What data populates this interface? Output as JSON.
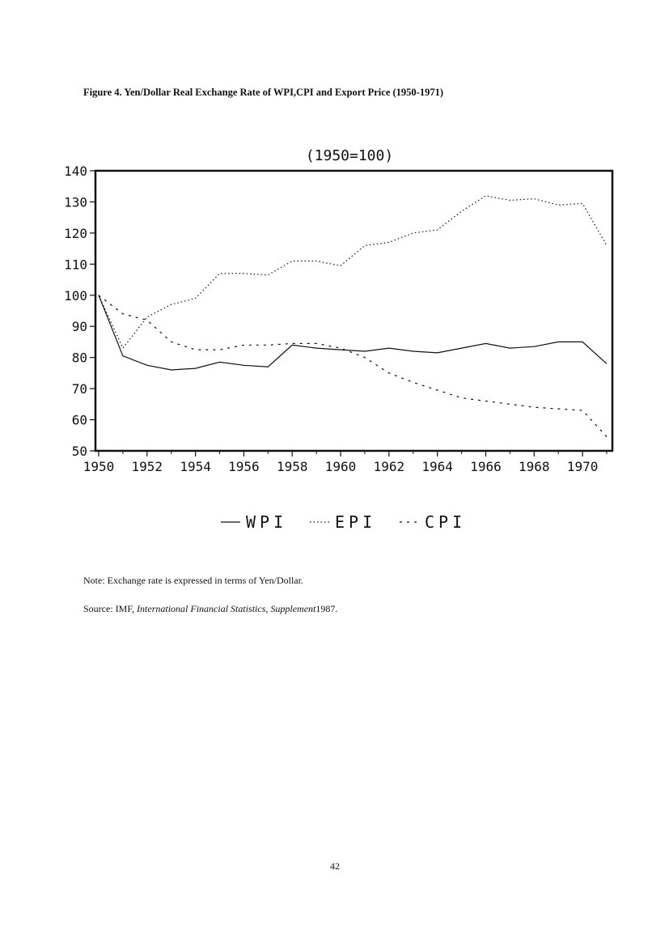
{
  "figure_title": "Figure 4. Yen/Dollar Real Exchange Rate of WPI,CPI and Export Price (1950-1971)",
  "note": "Note: Exchange rate is expressed in terms of Yen/Dollar.",
  "source": {
    "prefix": "Source: IMF,",
    "publication": "International Financial Statistics, Supplement",
    "year": "1987."
  },
  "page_number": "42",
  "chart_data": {
    "type": "line",
    "title": "(1950=100)",
    "xlabel": "",
    "ylabel": "",
    "xlim": [
      1950,
      1971
    ],
    "ylim": [
      50,
      140
    ],
    "x_ticks": [
      "1950",
      "1952",
      "1954",
      "1956",
      "1958",
      "1960",
      "1962",
      "1964",
      "1966",
      "1968",
      "1970"
    ],
    "y_ticks": [
      "50",
      "60",
      "70",
      "80",
      "90",
      "100",
      "110",
      "120",
      "130",
      "140"
    ],
    "legend_position": "bottom",
    "grid": false,
    "x": [
      1950,
      1951,
      1952,
      1953,
      1954,
      1955,
      1956,
      1957,
      1958,
      1959,
      1960,
      1961,
      1962,
      1963,
      1964,
      1965,
      1966,
      1967,
      1968,
      1969,
      1970,
      1971
    ],
    "series": [
      {
        "name": "WPI",
        "style": "solid",
        "values": [
          100,
          80.5,
          77.5,
          76,
          76.5,
          78.5,
          77.5,
          77,
          84,
          83,
          82.5,
          82,
          83,
          82,
          81.5,
          83,
          84.5,
          83,
          83.5,
          85,
          85,
          78
        ]
      },
      {
        "name": "EPI",
        "style": "dotted",
        "values": [
          100,
          83,
          93,
          97,
          99,
          107,
          107,
          106.5,
          111,
          111,
          109.5,
          116,
          117,
          120,
          121,
          127,
          132,
          130.5,
          131,
          129,
          129.5,
          116
        ]
      },
      {
        "name": "CPI",
        "style": "dashed",
        "values": [
          100,
          94,
          92,
          85,
          82.5,
          82.5,
          84,
          84,
          84.5,
          84.5,
          83,
          80,
          75,
          72,
          69.5,
          67,
          66,
          65,
          64,
          63.5,
          63,
          54.5
        ]
      }
    ]
  }
}
